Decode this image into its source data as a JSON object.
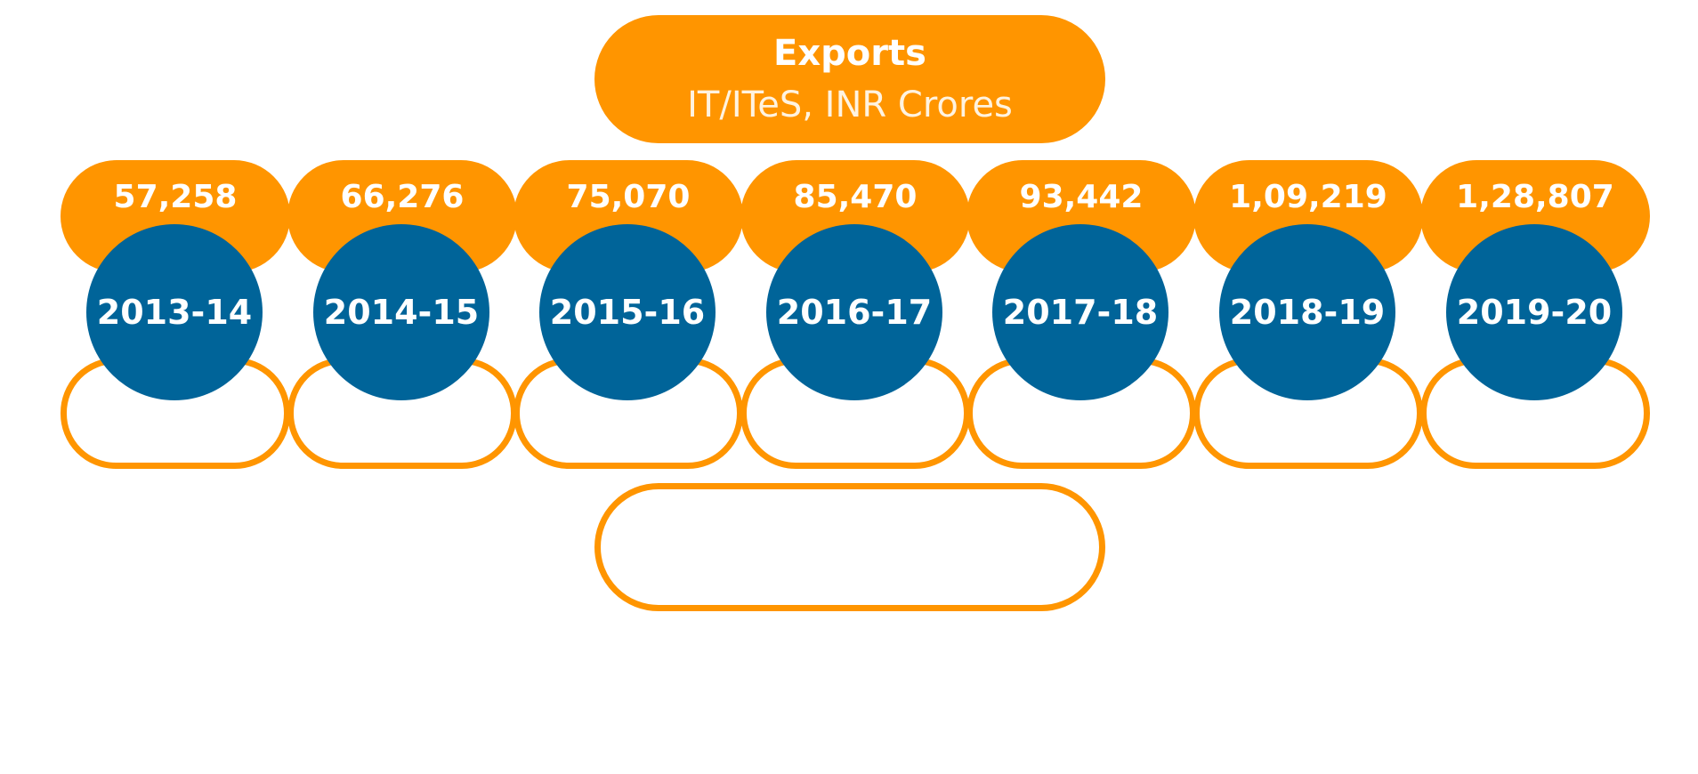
{
  "header": {
    "title": "Exports",
    "subtitle": "IT/ITeS, INR Crores"
  },
  "series": [
    {
      "year": "2013-14",
      "value_label": "57,258",
      "value": 57258
    },
    {
      "year": "2014-15",
      "value_label": "66,276",
      "value": 66276
    },
    {
      "year": "2015-16",
      "value_label": "75,070",
      "value": 75070
    },
    {
      "year": "2016-17",
      "value_label": "85,470",
      "value": 85470
    },
    {
      "year": "2017-18",
      "value_label": "93,442",
      "value": 93442
    },
    {
      "year": "2018-19",
      "value_label": "1,09,219",
      "value": 109219
    },
    {
      "year": "2019-20",
      "value_label": "1,28,807",
      "value": 128807
    }
  ],
  "colors": {
    "accent_orange": "#ff9500",
    "year_blue": "#006499",
    "text_white": "#ffffff"
  }
}
